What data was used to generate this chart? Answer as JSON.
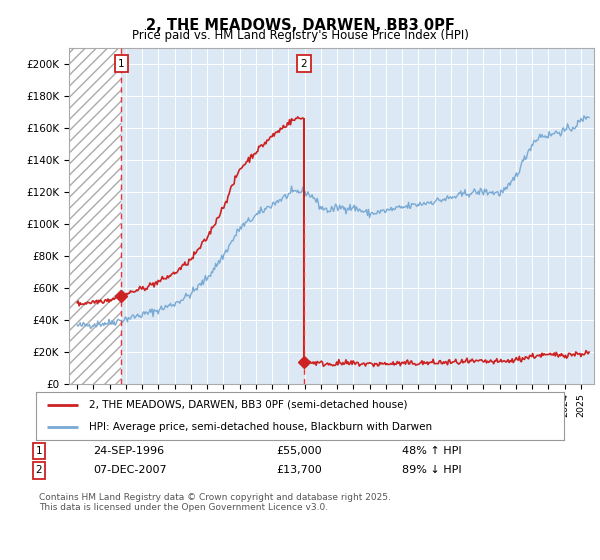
{
  "title": "2, THE MEADOWS, DARWEN, BB3 0PF",
  "subtitle": "Price paid vs. HM Land Registry's House Price Index (HPI)",
  "legend_line1": "2, THE MEADOWS, DARWEN, BB3 0PF (semi-detached house)",
  "legend_line2": "HPI: Average price, semi-detached house, Blackburn with Darwen",
  "footer": "Contains HM Land Registry data © Crown copyright and database right 2025.\nThis data is licensed under the Open Government Licence v3.0.",
  "sale1_date": "24-SEP-1996",
  "sale1_price": 55000,
  "sale1_hpi_text": "48% ↑ HPI",
  "sale1_year": 1996.73,
  "sale2_date": "07-DEC-2007",
  "sale2_price": 13700,
  "sale2_hpi_text": "89% ↓ HPI",
  "sale2_year": 2007.93,
  "hpi_color": "#7aaad4",
  "price_color": "#cc2222",
  "marker_color": "#cc2222",
  "dashed_color": "#ee3333",
  "plot_bg_color": "#dce9f5",
  "ylim": [
    0,
    210000
  ],
  "xlim": [
    1993.5,
    2025.8
  ],
  "yticks": [
    0,
    20000,
    40000,
    60000,
    80000,
    100000,
    120000,
    140000,
    160000,
    180000,
    200000
  ],
  "ytick_labels": [
    "£0",
    "£20K",
    "£40K",
    "£60K",
    "£80K",
    "£100K",
    "£120K",
    "£140K",
    "£160K",
    "£180K",
    "£200K"
  ]
}
